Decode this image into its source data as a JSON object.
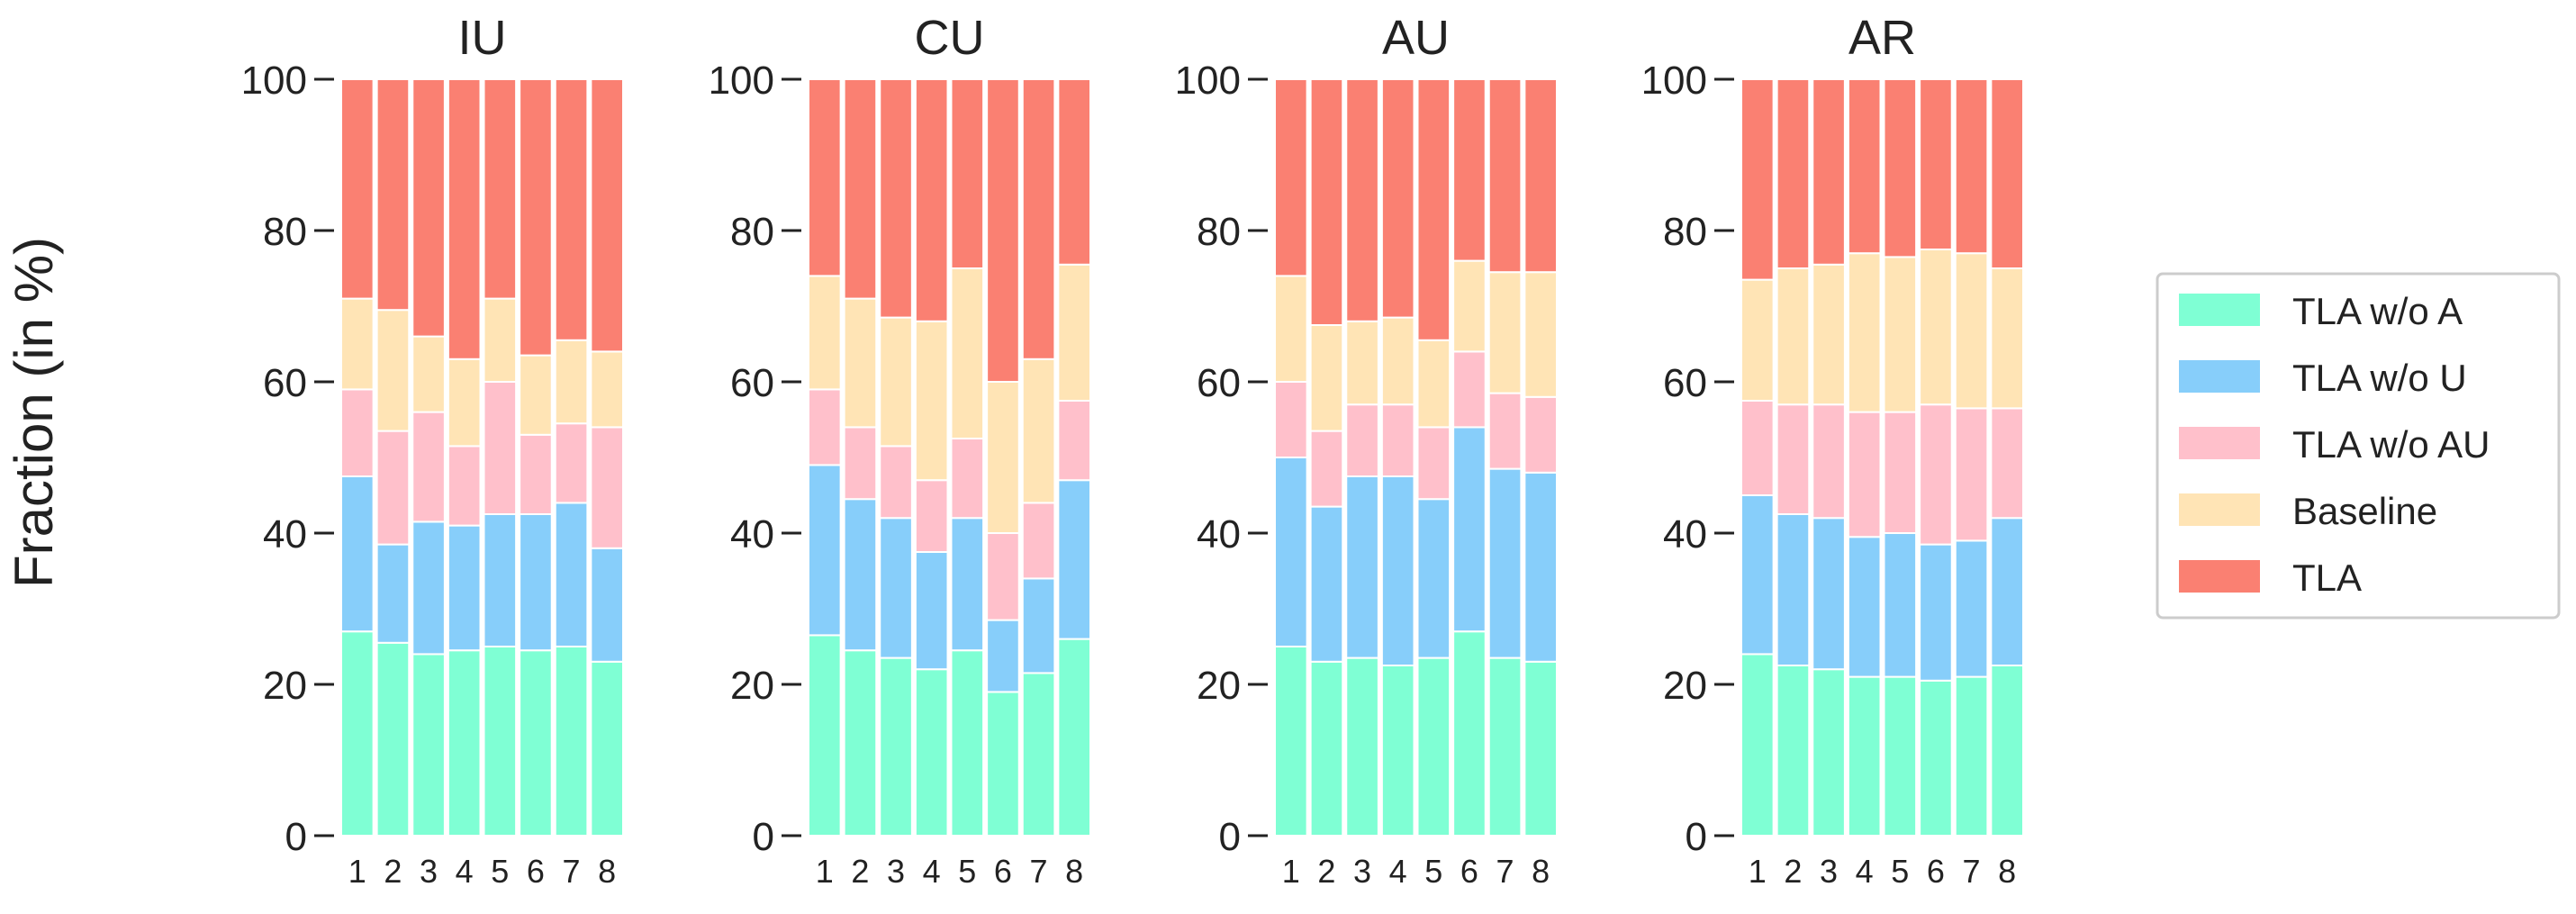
{
  "figure": {
    "ylabel": "Fraction (in %)"
  },
  "chart_data": {
    "type": "bar",
    "stacked": true,
    "ylabel": "Fraction (in %)",
    "ylim": [
      0,
      100
    ],
    "yticks": [
      0,
      20,
      40,
      60,
      80,
      100
    ],
    "categories": [
      "1",
      "2",
      "3",
      "4",
      "5",
      "6",
      "7",
      "8"
    ],
    "legend": {
      "placement": "right",
      "entries": [
        "TLA w/o A",
        "TLA w/o U",
        "TLA w/o AU",
        "Baseline",
        "TLA"
      ]
    },
    "series_colors": {
      "TLA w/o A": "#7fffd4",
      "TLA w/o U": "#87cefa",
      "TLA w/o AU": "#ffc0cb",
      "Baseline": "#ffe4b5",
      "TLA": "#fa8072"
    },
    "panels": [
      {
        "title": "IU",
        "series": [
          {
            "name": "TLA w/o A",
            "values": [
              27,
              25.5,
              24,
              24.5,
              25,
              24.5,
              25,
              23
            ]
          },
          {
            "name": "TLA w/o U",
            "values": [
              20.5,
              13,
              17.5,
              16.5,
              17.5,
              18,
              19,
              15
            ]
          },
          {
            "name": "TLA w/o AU",
            "values": [
              11.5,
              15,
              14.5,
              10.5,
              17.5,
              10.5,
              10.5,
              16
            ]
          },
          {
            "name": "Baseline",
            "values": [
              12,
              16,
              10,
              11.5,
              11,
              10.5,
              11,
              10
            ]
          },
          {
            "name": "TLA",
            "values": [
              29,
              30.5,
              34,
              37,
              29,
              36.5,
              34.5,
              36
            ]
          }
        ]
      },
      {
        "title": "CU",
        "series": [
          {
            "name": "TLA w/o A",
            "values": [
              26.5,
              24.5,
              23.5,
              22,
              24.5,
              19,
              21.5,
              26
            ]
          },
          {
            "name": "TLA w/o U",
            "values": [
              22.5,
              20,
              18.5,
              15.5,
              17.5,
              9.5,
              12.5,
              21
            ]
          },
          {
            "name": "TLA w/o AU",
            "values": [
              10,
              9.5,
              9.5,
              9.5,
              10.5,
              11.5,
              10,
              10.5
            ]
          },
          {
            "name": "Baseline",
            "values": [
              15,
              17,
              17,
              21,
              22.5,
              20,
              19,
              18
            ]
          },
          {
            "name": "TLA",
            "values": [
              26,
              29,
              31.5,
              32,
              25,
              40,
              37,
              24.5
            ]
          }
        ]
      },
      {
        "title": "AU",
        "series": [
          {
            "name": "TLA w/o A",
            "values": [
              25,
              23,
              23.5,
              22.5,
              23.5,
              27,
              23.5,
              23
            ]
          },
          {
            "name": "TLA w/o U",
            "values": [
              25,
              20.5,
              24,
              25,
              21,
              27,
              25,
              25
            ]
          },
          {
            "name": "TLA w/o AU",
            "values": [
              10,
              10,
              9.5,
              9.5,
              9.5,
              10,
              10,
              10
            ]
          },
          {
            "name": "Baseline",
            "values": [
              14,
              14,
              11,
              11.5,
              11.5,
              12,
              16,
              16.5
            ]
          },
          {
            "name": "TLA",
            "values": [
              26,
              32.5,
              32,
              31.5,
              34.5,
              24,
              25.5,
              25.5
            ]
          }
        ]
      },
      {
        "title": "AR",
        "series": [
          {
            "name": "TLA w/o A",
            "values": [
              24,
              22.5,
              22,
              21,
              21,
              20.5,
              21,
              22.5
            ]
          },
          {
            "name": "TLA w/o U",
            "values": [
              21,
              20,
              20,
              18.5,
              19,
              18,
              18,
              19.5
            ]
          },
          {
            "name": "TLA w/o AU",
            "values": [
              12.5,
              14.5,
              15,
              16.5,
              16,
              18.5,
              17.5,
              14.5
            ]
          },
          {
            "name": "Baseline",
            "values": [
              16,
              18,
              18.5,
              21,
              20.5,
              20.5,
              20.5,
              18.5
            ]
          },
          {
            "name": "TLA",
            "values": [
              26.5,
              25,
              24.5,
              23,
              23.5,
              22.5,
              23,
              25
            ]
          }
        ]
      }
    ]
  }
}
